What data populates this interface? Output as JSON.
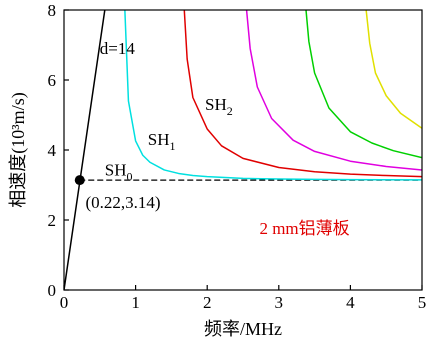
{
  "chart_data": {
    "type": "line",
    "xlabel": "频率/MHz",
    "ylabel": "相速度(10³m/s)",
    "xlim": [
      0,
      5
    ],
    "ylim": [
      0,
      8
    ],
    "x_ticks": [
      0,
      1,
      2,
      3,
      4,
      5
    ],
    "y_ticks": [
      0,
      2,
      4,
      6,
      8
    ],
    "grid": false,
    "series": [
      {
        "name": "SH0",
        "color": "#000000",
        "style": "dashed",
        "x": [
          0.22,
          5.0
        ],
        "y": [
          3.14,
          3.14
        ]
      },
      {
        "name": "SH1",
        "color": "#00e0e0",
        "style": "solid",
        "x": [
          0.85,
          0.9,
          1.0,
          1.1,
          1.2,
          1.4,
          1.6,
          1.8,
          2.0,
          2.5,
          3.0,
          3.5,
          4.0,
          4.5,
          5.0
        ],
        "y": [
          8.0,
          5.4,
          4.26,
          3.85,
          3.65,
          3.43,
          3.33,
          3.27,
          3.24,
          3.19,
          3.17,
          3.16,
          3.155,
          3.15,
          3.147
        ]
      },
      {
        "name": "SH2",
        "color": "#e00000",
        "style": "solid",
        "x": [
          1.68,
          1.72,
          1.8,
          2.0,
          2.2,
          2.5,
          3.0,
          3.5,
          4.0,
          4.5,
          5.0
        ],
        "y": [
          8.0,
          6.6,
          5.5,
          4.6,
          4.12,
          3.76,
          3.5,
          3.38,
          3.31,
          3.27,
          3.24
        ]
      },
      {
        "name": "",
        "color": "#e000e0",
        "style": "solid",
        "x": [
          2.55,
          2.6,
          2.7,
          2.9,
          3.2,
          3.5,
          4.0,
          4.5,
          5.0
        ],
        "y": [
          8.0,
          6.9,
          5.8,
          4.9,
          4.28,
          3.96,
          3.68,
          3.53,
          3.43
        ]
      },
      {
        "name": "",
        "color": "#00d000",
        "style": "solid",
        "x": [
          3.38,
          3.42,
          3.5,
          3.7,
          4.0,
          4.3,
          4.6,
          5.0
        ],
        "y": [
          8.0,
          7.1,
          6.2,
          5.2,
          4.52,
          4.2,
          3.98,
          3.78
        ]
      },
      {
        "name": "",
        "color": "#e0e000",
        "style": "solid",
        "x": [
          4.22,
          4.27,
          4.35,
          4.5,
          4.7,
          5.0
        ],
        "y": [
          8.0,
          7.05,
          6.2,
          5.55,
          5.05,
          4.62
        ]
      },
      {
        "name": "",
        "color": "#000000",
        "style": "solid",
        "x": [
          0.0,
          0.57
        ],
        "y": [
          0.0,
          8.0
        ]
      }
    ],
    "annotations": [
      {
        "text": "d=14",
        "x": 0.5,
        "y": 6.75,
        "color": "#000000"
      },
      {
        "text_main": "SH",
        "text_sub": "1",
        "x": 1.17,
        "y": 4.15,
        "color": "#000000"
      },
      {
        "text_main": "SH",
        "text_sub": "2",
        "x": 1.97,
        "y": 5.15,
        "color": "#000000"
      },
      {
        "text_main": "SH",
        "text_sub": "0",
        "x": 0.57,
        "y": 3.27,
        "color": "#000000"
      },
      {
        "text": "(0.22,3.14)",
        "x": 0.3,
        "y": 2.35,
        "color": "#000000"
      },
      {
        "text": "2 mm铝薄板",
        "x": 2.73,
        "y": 1.6,
        "color": "#e00000"
      }
    ],
    "points": [
      {
        "x": 0.22,
        "y": 3.14,
        "color": "#000000"
      }
    ]
  }
}
